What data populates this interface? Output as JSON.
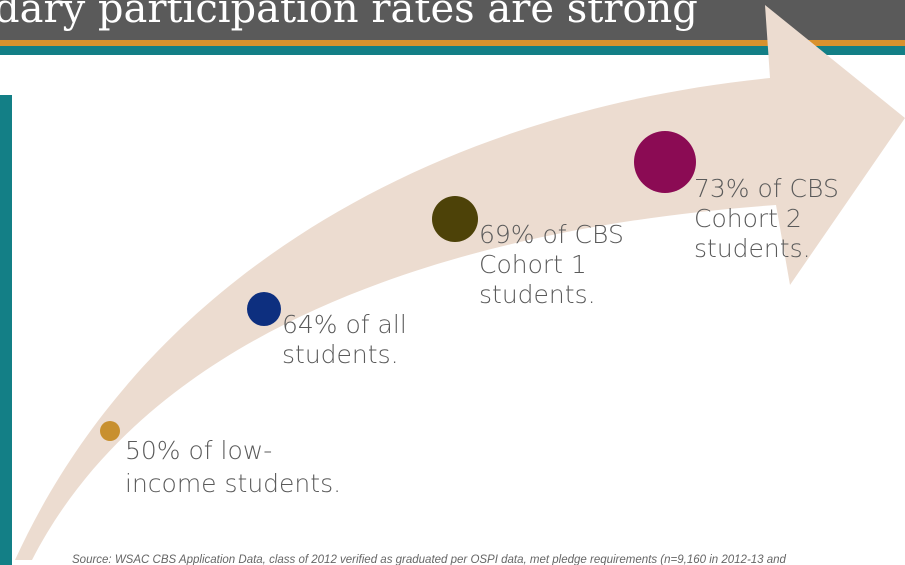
{
  "title": "dary participation rates are strong",
  "points": [
    {
      "lines": [
        "50% of low-",
        "income students."
      ]
    },
    {
      "lines": [
        "64% of all",
        "students."
      ]
    },
    {
      "lines": [
        "69% of CBS",
        "Cohort 1",
        "students."
      ]
    },
    {
      "lines": [
        "73% of CBS",
        "Cohort 2",
        "students."
      ]
    }
  ],
  "source": "Source: WSAC CBS Application Data, class of 2012 verified as graduated per OSPI data, met pledge requirements (n=9,160 in 2012-13 and"
}
